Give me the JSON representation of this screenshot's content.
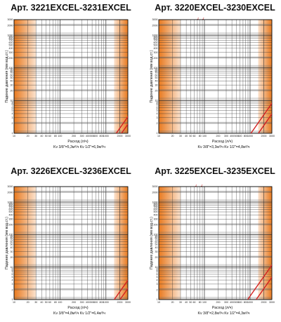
{
  "colors": {
    "zone_dark": "#e8791e",
    "zone_light": "#fbe3cf",
    "line": "#d42020",
    "grid": "#2b2b2b",
    "grid_minor": "#666666"
  },
  "chart_data": [
    {
      "type": "line",
      "title": "Арт. 3221EXCEL-3231EXCEL",
      "xlabel": "Расход (л/ч)",
      "ylabel": "Падение давления (мм вод.ст.)",
      "kv_text": "Kv 3/8\"=5,3м³/ч   Kv 1/2\"=6,9м³/ч",
      "x_scale": "log",
      "y_scale": "log",
      "xlim": [
        10,
        3000
      ],
      "ylim": [
        1,
        3000
      ],
      "x_ticks": [
        10,
        20,
        30,
        40,
        50,
        60,
        80,
        100,
        200,
        300,
        400,
        500,
        600,
        800,
        1000,
        2000,
        3000
      ],
      "y_ticks": [
        1,
        2,
        3,
        4,
        5,
        6,
        7,
        8,
        9,
        10,
        20,
        30,
        40,
        50,
        60,
        70,
        80,
        90,
        100,
        200,
        300,
        400,
        500,
        600,
        700,
        800,
        900,
        1000,
        2000,
        3000
      ],
      "orange_zones": [
        [
          10,
          30
        ],
        [
          1500,
          3000
        ]
      ],
      "series": [
        {
          "name": "3/8\"",
          "kv": 5.3
        },
        {
          "name": "1/2\"",
          "kv": 6.9
        }
      ]
    },
    {
      "type": "line",
      "title": "Арт. 3220EXCEL-3230EXCEL",
      "xlabel": "Расход (л/ч)",
      "ylabel": "Падение давления (мм вод.ст.)",
      "kv_text": "Kv 3/8\"=3,3м³/ч   Kv 1/2\"=4,8м³/ч",
      "x_scale": "log",
      "y_scale": "log",
      "xlim": [
        10,
        3000
      ],
      "ylim": [
        1,
        3000
      ],
      "x_ticks": [
        10,
        20,
        30,
        40,
        50,
        60,
        80,
        100,
        200,
        300,
        400,
        500,
        600,
        800,
        1000,
        2000,
        3000
      ],
      "y_ticks": [
        1,
        2,
        3,
        4,
        5,
        6,
        7,
        8,
        9,
        10,
        20,
        30,
        40,
        50,
        60,
        70,
        80,
        90,
        100,
        200,
        300,
        400,
        500,
        600,
        700,
        800,
        900,
        1000,
        2000,
        3000
      ],
      "orange_zones": [
        [
          10,
          30
        ],
        [
          1500,
          3000
        ]
      ],
      "series": [
        {
          "name": "3/8\"",
          "kv": 3.3
        },
        {
          "name": "1/2\"",
          "kv": 4.8
        }
      ]
    },
    {
      "type": "line",
      "title": "Арт. 3226EXCEL-3236EXCEL",
      "xlabel": "Расход (л/ч)",
      "ylabel": "Падение давления (мм вод.ст.)",
      "kv_text": "Kv 3/8\"=4,8м³/ч   Kv 1/2\"=6,4м³/ч",
      "x_scale": "log",
      "y_scale": "log",
      "xlim": [
        10,
        3000
      ],
      "ylim": [
        1,
        3000
      ],
      "x_ticks": [
        10,
        20,
        30,
        40,
        50,
        60,
        80,
        100,
        200,
        300,
        400,
        500,
        600,
        800,
        1000,
        2000,
        3000
      ],
      "y_ticks": [
        1,
        2,
        3,
        4,
        5,
        6,
        7,
        8,
        9,
        10,
        20,
        30,
        40,
        50,
        60,
        70,
        80,
        90,
        100,
        200,
        300,
        400,
        500,
        600,
        700,
        800,
        900,
        1000,
        2000,
        3000
      ],
      "orange_zones": [
        [
          10,
          30
        ],
        [
          1500,
          3000
        ]
      ],
      "series": [
        {
          "name": "3/8\"",
          "kv": 4.8
        },
        {
          "name": "1/2\"",
          "kv": 6.4
        }
      ]
    },
    {
      "type": "line",
      "title": "Арт. 3225EXCEL-3235EXCEL",
      "xlabel": "Расход (л/ч)",
      "ylabel": "Падение давления (мм вод.ст.)",
      "kv_text": "Kv 3/8\"=2,8м³/ч   Kv 1/2\"=4,3м³/ч",
      "x_scale": "log",
      "y_scale": "log",
      "xlim": [
        10,
        3000
      ],
      "ylim": [
        1,
        3000
      ],
      "x_ticks": [
        10,
        20,
        30,
        40,
        50,
        60,
        80,
        100,
        200,
        300,
        400,
        500,
        600,
        800,
        1000,
        2000,
        3000
      ],
      "y_ticks": [
        1,
        2,
        3,
        4,
        5,
        6,
        7,
        8,
        9,
        10,
        20,
        30,
        40,
        50,
        60,
        70,
        80,
        90,
        100,
        200,
        300,
        400,
        500,
        600,
        700,
        800,
        900,
        1000,
        2000,
        3000
      ],
      "orange_zones": [
        [
          10,
          30
        ],
        [
          1500,
          3000
        ]
      ],
      "series": [
        {
          "name": "3/8\"",
          "kv": 2.8
        },
        {
          "name": "1/2\"",
          "kv": 4.3
        }
      ]
    }
  ]
}
